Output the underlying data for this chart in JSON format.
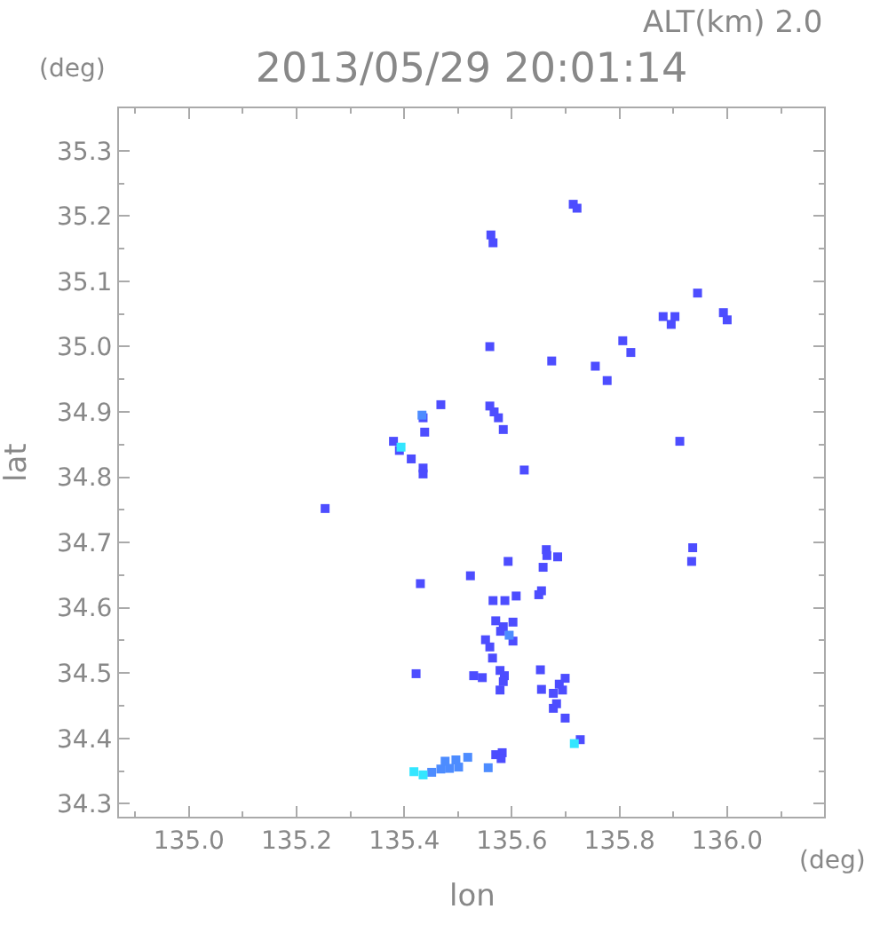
{
  "chart_data": {
    "type": "scatter",
    "title": "2013/05/29 20:01:14",
    "subtitle": "ALT(km) 2.0",
    "xlabel": "lon",
    "ylabel": "lat",
    "annotations": [
      "(deg)",
      "(deg)"
    ],
    "xlim": [
      134.87,
      136.18
    ],
    "ylim": [
      34.28,
      35.365
    ],
    "xticks": [
      {
        "value": 134.9,
        "label": null
      },
      {
        "value": 135,
        "label": "135.0"
      },
      {
        "value": 135.1,
        "label": null
      },
      135.2,
      {
        "value": 135.3,
        "label": null
      },
      135.4,
      {
        "value": 135.5,
        "label": null
      },
      135.6,
      {
        "value": 135.7,
        "label": null
      },
      135.8,
      {
        "value": 135.9,
        "label": null
      },
      {
        "value": 136,
        "label": "136.0"
      },
      {
        "value": 136.1,
        "label": null
      }
    ],
    "yticks": [
      34.3,
      {
        "value": 34.35,
        "label": null
      },
      34.4,
      {
        "value": 34.45,
        "label": null
      },
      34.5,
      {
        "value": 34.55,
        "label": null
      },
      34.6,
      {
        "value": 34.65,
        "label": null
      },
      34.7,
      {
        "value": 34.75,
        "label": null
      },
      34.8,
      {
        "value": 34.85,
        "label": null
      },
      34.9,
      {
        "value": 34.95,
        "label": null
      },
      {
        "value": 35,
        "label": "35.0"
      },
      {
        "value": 35.05,
        "label": null
      },
      35.1,
      {
        "value": 35.15,
        "label": null
      },
      35.2,
      {
        "value": 35.25,
        "label": null
      },
      35.3
    ],
    "marker": "square",
    "series": [
      {
        "color": "#4d4dff",
        "x": [
          135.714,
          135.721,
          135.561,
          135.565,
          135.559,
          135.674,
          135.755,
          135.777,
          135.806,
          135.821,
          135.881,
          135.903,
          135.896,
          135.945,
          135.993,
          136.0,
          135.912,
          135.567,
          135.575,
          135.559,
          135.584,
          135.623,
          135.468,
          135.435,
          135.438,
          135.38,
          135.391,
          135.413,
          135.435,
          135.435,
          135.253,
          135.43,
          135.523,
          135.593,
          135.664,
          135.665,
          135.685,
          135.658,
          135.655,
          135.65,
          135.565,
          135.587,
          135.608,
          135.57,
          135.602,
          135.579,
          135.584,
          135.602,
          135.551,
          135.559,
          135.564,
          135.422,
          135.529,
          135.545,
          135.578,
          135.586,
          135.584,
          135.578,
          135.653,
          135.655,
          135.699,
          135.688,
          135.694,
          135.677,
          135.677,
          135.683,
          135.699,
          135.727,
          135.582,
          135.57,
          135.58,
          135.936,
          135.934
        ],
        "values": [
          35.218,
          35.212,
          35.171,
          35.159,
          35.0,
          34.978,
          34.97,
          34.948,
          35.009,
          34.991,
          35.046,
          35.046,
          35.034,
          35.082,
          35.052,
          35.041,
          34.855,
          34.9,
          34.891,
          34.909,
          34.873,
          34.811,
          34.911,
          34.891,
          34.869,
          34.855,
          34.841,
          34.828,
          34.814,
          34.805,
          34.752,
          34.637,
          34.649,
          34.671,
          34.689,
          34.68,
          34.678,
          34.662,
          34.626,
          34.62,
          34.611,
          34.611,
          34.618,
          34.58,
          34.578,
          34.564,
          34.571,
          34.549,
          34.551,
          34.54,
          34.523,
          34.499,
          34.496,
          34.493,
          34.504,
          34.496,
          34.487,
          34.474,
          34.505,
          34.475,
          34.492,
          34.483,
          34.474,
          34.469,
          34.446,
          34.453,
          34.431,
          34.398,
          34.378,
          34.375,
          34.369,
          34.692,
          34.671
        ]
      },
      {
        "color": "#4d8cff",
        "x": [
          135.433,
          135.595,
          135.556,
          135.451,
          135.468,
          135.484,
          135.476,
          135.496,
          135.501,
          135.518
        ],
        "values": [
          34.895,
          34.558,
          34.355,
          34.348,
          34.353,
          34.354,
          34.365,
          34.367,
          34.356,
          34.371
        ]
      },
      {
        "color": "#33e6ff",
        "x": [
          135.394,
          135.716,
          135.418,
          135.435
        ],
        "values": [
          34.846,
          34.392,
          34.349,
          34.344
        ]
      }
    ]
  }
}
